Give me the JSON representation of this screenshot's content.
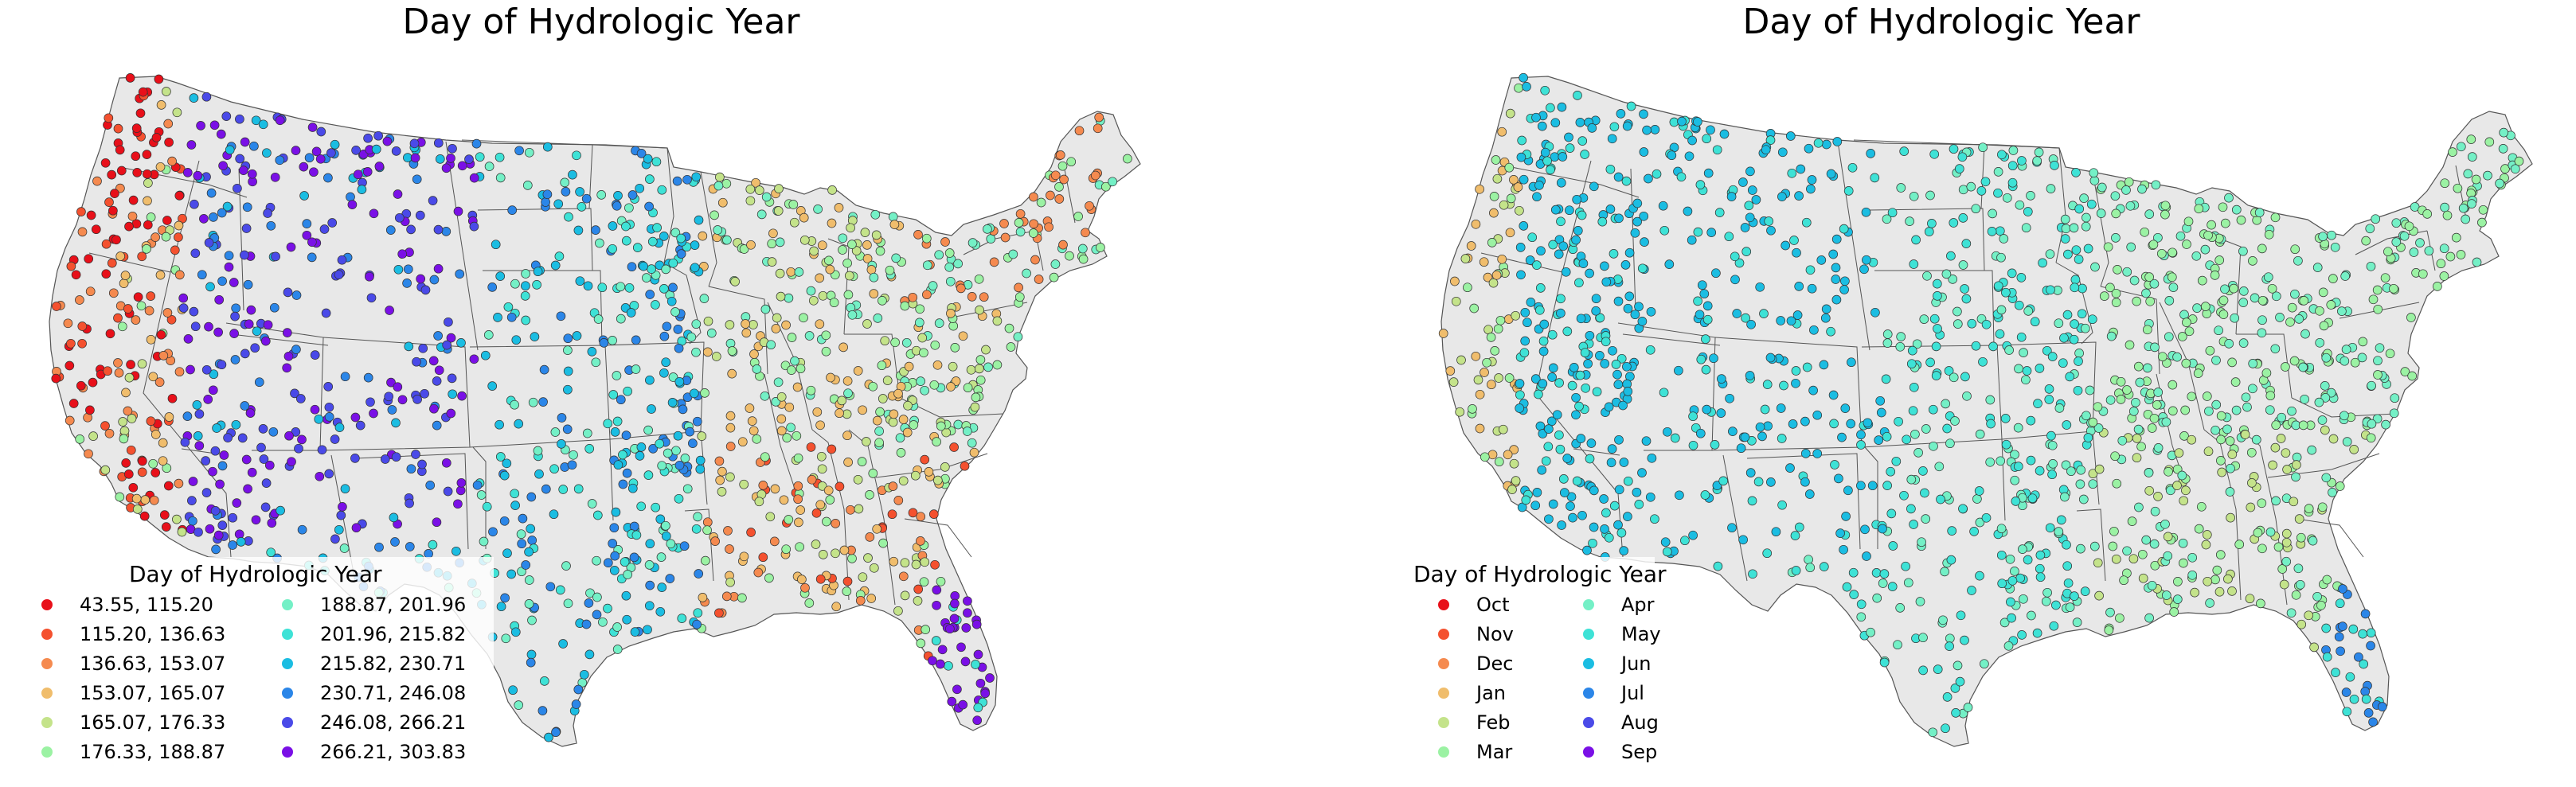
{
  "panels": [
    {
      "title": "Day of Hydrologic Year",
      "legend": {
        "title": "Day of Hydrologic Year",
        "items": [
          {
            "label": " 43.55, 115.20",
            "color": "#e8101a"
          },
          {
            "label": "115.20, 136.63",
            "color": "#f4512f"
          },
          {
            "label": "136.63, 153.07",
            "color": "#f58a4f"
          },
          {
            "label": "153.07, 165.07",
            "color": "#f0bd6c"
          },
          {
            "label": "165.07, 176.33",
            "color": "#c4e38a"
          },
          {
            "label": "176.33, 188.87",
            "color": "#9bf2a3"
          },
          {
            "label": "188.87, 201.96",
            "color": "#74f0c6"
          },
          {
            "label": "201.96, 215.82",
            "color": "#3ee2d6"
          },
          {
            "label": "215.82, 230.71",
            "color": "#1bbde2"
          },
          {
            "label": "230.71, 246.08",
            "color": "#2b86e8"
          },
          {
            "label": "246.08, 266.21",
            "color": "#4a4ae8"
          },
          {
            "label": "266.21, 303.83",
            "color": "#7a10e6"
          }
        ]
      }
    },
    {
      "title": "Day of Hydrologic Year",
      "legend": {
        "title": "Day of Hydrologic Year",
        "items": [
          {
            "label": "Oct",
            "color": "#e8101a"
          },
          {
            "label": "Nov",
            "color": "#f4512f"
          },
          {
            "label": "Dec",
            "color": "#f58a4f"
          },
          {
            "label": "Jan",
            "color": "#f0bd6c"
          },
          {
            "label": "Feb",
            "color": "#c4e38a"
          },
          {
            "label": "Mar",
            "color": "#9bf2a3"
          },
          {
            "label": "Apr",
            "color": "#74f0c6"
          },
          {
            "label": "May",
            "color": "#3ee2d6"
          },
          {
            "label": "Jun",
            "color": "#1bbde2"
          },
          {
            "label": "Jul",
            "color": "#2b86e8"
          },
          {
            "label": "Aug",
            "color": "#4a4ae8"
          },
          {
            "label": "Sep",
            "color": "#7a10e6"
          }
        ]
      }
    }
  ],
  "map": {
    "land_color": "#e8e8e8",
    "border_color": "#555555",
    "marker_edge_color": "#333333"
  }
}
